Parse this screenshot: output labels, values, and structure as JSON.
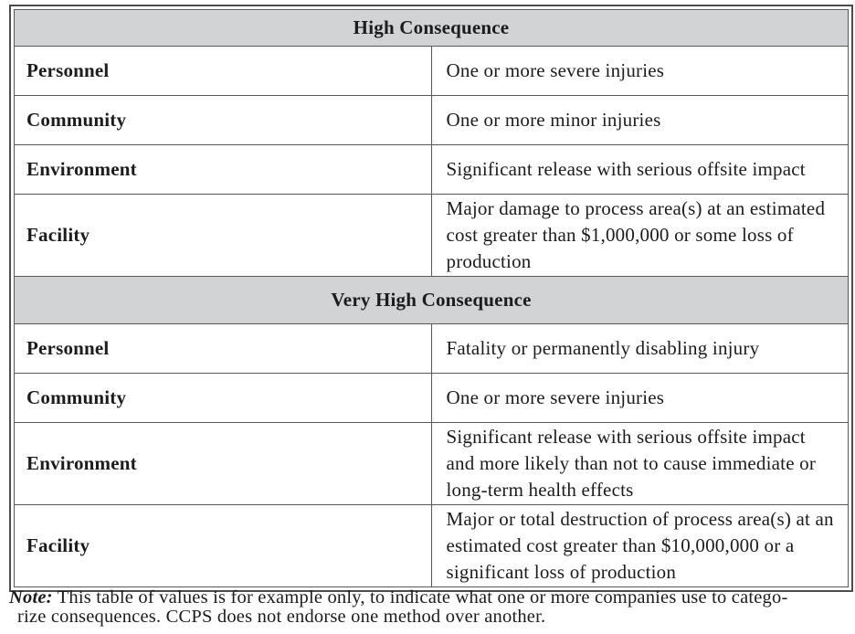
{
  "table": {
    "sections": [
      {
        "header": "High Consequence",
        "rows": [
          {
            "label": "Personnel",
            "description": "One or more severe injuries"
          },
          {
            "label": "Community",
            "description": "One or more minor injuries"
          },
          {
            "label": "Environment",
            "description": "Significant release with serious offsite impact"
          },
          {
            "label": "Facility",
            "description": "Major damage to process area(s) at an estimated cost greater than $1,000,000 or some loss of production"
          }
        ]
      },
      {
        "header": "Very High Consequence",
        "rows": [
          {
            "label": "Personnel",
            "description": "Fatality or permanently disabling injury"
          },
          {
            "label": "Community",
            "description": "One or more severe injuries"
          },
          {
            "label": "Environment",
            "description": "Significant release with serious offsite impact and more likely than not to cause immediate or long-term health effects"
          },
          {
            "label": "Facility",
            "description": "Major or total destruction of process area(s) at an estimated cost greater than $10,000,000 or a significant loss of production"
          }
        ]
      }
    ]
  },
  "note": {
    "label": "Note:",
    "line1": " This table of values is for example only, to indicate what one or more companies use to catego-",
    "line2": "rize consequences. CCPS does not endorse one method over another."
  },
  "colors": {
    "header_background": "#d1d3d4",
    "border": "#4d4d4f",
    "inner_border": "#58585a",
    "text": "#1c1c1e",
    "page_background": "#ffffff"
  }
}
